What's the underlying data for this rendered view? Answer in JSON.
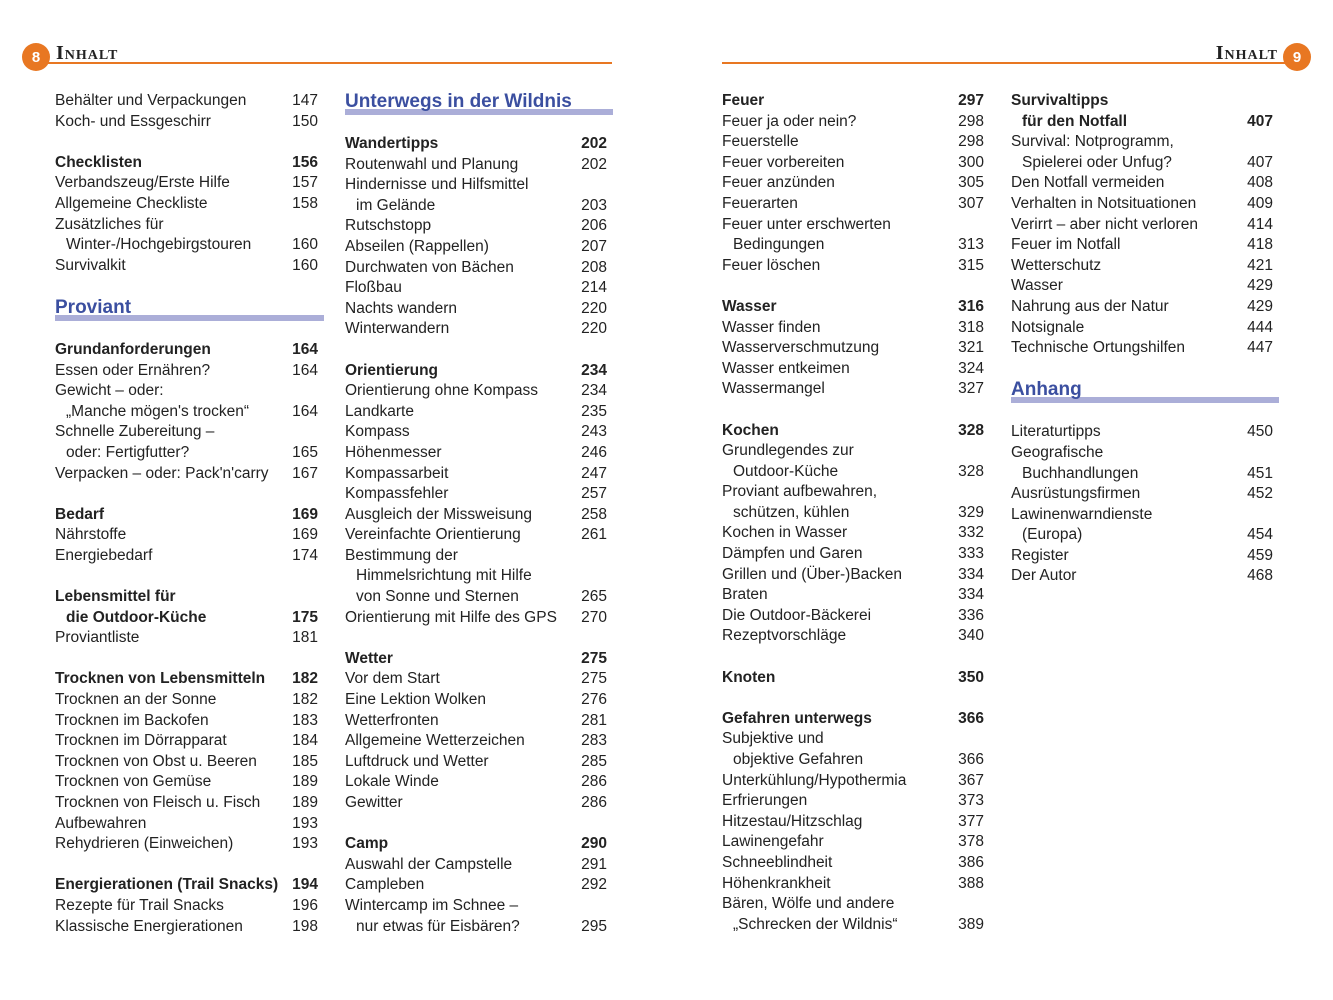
{
  "header": {
    "left_page": "8",
    "right_page": "9",
    "title": "Inhalt",
    "accent": "#e87722",
    "chapter_color": "#3b4fa0",
    "chapter_bar": "#abaed8"
  },
  "columns": [
    [
      [
        "Behälter und Verpackungen",
        "147",
        ""
      ],
      [
        "Koch- und Essgeschirr",
        "150",
        ""
      ],
      [
        "",
        "",
        ""
      ],
      [
        "Checklisten",
        "156",
        "b"
      ],
      [
        "Verbandszeug/Erste Hilfe",
        "157",
        ""
      ],
      [
        "Allgemeine Checkliste",
        "158",
        ""
      ],
      [
        "Zusätzliches für",
        "",
        ""
      ],
      [
        "Winter-/Hochgebirgstouren",
        "160",
        "i"
      ],
      [
        "Survivalkit",
        "160",
        ""
      ],
      [
        "",
        "",
        ""
      ],
      [
        "Proviant",
        "",
        "chap"
      ],
      [
        "Grundanforderungen",
        "164",
        "b"
      ],
      [
        "Essen oder Ernähren?",
        "164",
        ""
      ],
      [
        "Gewicht – oder:",
        "",
        ""
      ],
      [
        "„Manche mögen's trocken“",
        "164",
        "i"
      ],
      [
        "Schnelle Zubereitung –",
        "",
        ""
      ],
      [
        "oder: Fertigfutter?",
        "165",
        "i"
      ],
      [
        "Verpacken – oder: Pack'n'carry",
        "167",
        ""
      ],
      [
        "",
        "",
        ""
      ],
      [
        "Bedarf",
        "169",
        "b"
      ],
      [
        "Nährstoffe",
        "169",
        ""
      ],
      [
        "Energiebedarf",
        "174",
        ""
      ],
      [
        "",
        "",
        ""
      ],
      [
        "Lebensmittel für",
        "",
        "b"
      ],
      [
        "die Outdoor-Küche",
        "175",
        "b i"
      ],
      [
        "Proviantliste",
        "181",
        ""
      ],
      [
        "",
        "",
        ""
      ],
      [
        "Trocknen von Lebensmitteln",
        "182",
        "b"
      ],
      [
        "Trocknen an der Sonne",
        "182",
        ""
      ],
      [
        "Trocknen im Backofen",
        "183",
        ""
      ],
      [
        "Trocknen im Dörrapparat",
        "184",
        ""
      ],
      [
        "Trocknen von Obst u. Beeren",
        "185",
        ""
      ],
      [
        "Trocknen von Gemüse",
        "189",
        ""
      ],
      [
        "Trocknen von Fleisch u. Fisch",
        "189",
        ""
      ],
      [
        "Aufbewahren",
        "193",
        ""
      ],
      [
        "Rehydrieren (Einweichen)",
        "193",
        ""
      ],
      [
        "",
        "",
        ""
      ],
      [
        "Energierationen (Trail Snacks)",
        "194",
        "b"
      ],
      [
        "Rezepte für Trail Snacks",
        "196",
        ""
      ],
      [
        "Klassische Energierationen",
        "198",
        ""
      ]
    ],
    [
      [
        "Unterwegs in der Wildnis",
        "",
        "chap"
      ],
      [
        "Wandertipps",
        "202",
        "b"
      ],
      [
        "Routenwahl und Planung",
        "202",
        ""
      ],
      [
        "Hindernisse und Hilfsmittel",
        "",
        ""
      ],
      [
        "im Gelände",
        "203",
        "i"
      ],
      [
        "Rutschstopp",
        "206",
        ""
      ],
      [
        "Abseilen (Rappellen)",
        "207",
        ""
      ],
      [
        "Durchwaten von Bächen",
        "208",
        ""
      ],
      [
        "Floßbau",
        "214",
        ""
      ],
      [
        "Nachts wandern",
        "220",
        ""
      ],
      [
        "Winterwandern",
        "220",
        ""
      ],
      [
        "",
        "",
        ""
      ],
      [
        "Orientierung",
        "234",
        "b"
      ],
      [
        "Orientierung ohne Kompass",
        "234",
        ""
      ],
      [
        "Landkarte",
        "235",
        ""
      ],
      [
        "Kompass",
        "243",
        ""
      ],
      [
        "Höhenmesser",
        "246",
        ""
      ],
      [
        "Kompassarbeit",
        "247",
        ""
      ],
      [
        "Kompassfehler",
        "257",
        ""
      ],
      [
        "Ausgleich der Missweisung",
        "258",
        ""
      ],
      [
        "Vereinfachte Orientierung",
        "261",
        ""
      ],
      [
        "Bestimmung der",
        "",
        ""
      ],
      [
        "Himmelsrichtung mit Hilfe",
        "",
        "i"
      ],
      [
        "von Sonne und Sternen",
        "265",
        "i"
      ],
      [
        "Orientierung mit Hilfe des GPS",
        "270",
        ""
      ],
      [
        "",
        "",
        ""
      ],
      [
        "Wetter",
        "275",
        "b"
      ],
      [
        "Vor dem Start",
        "275",
        ""
      ],
      [
        "Eine Lektion Wolken",
        "276",
        ""
      ],
      [
        "Wetterfronten",
        "281",
        ""
      ],
      [
        "Allgemeine Wetterzeichen",
        "283",
        ""
      ],
      [
        "Luftdruck und Wetter",
        "285",
        ""
      ],
      [
        "Lokale Winde",
        "286",
        ""
      ],
      [
        "Gewitter",
        "286",
        ""
      ],
      [
        "",
        "",
        ""
      ],
      [
        "Camp",
        "290",
        "b"
      ],
      [
        "Auswahl der Campstelle",
        "291",
        ""
      ],
      [
        "Campleben",
        "292",
        ""
      ],
      [
        "Wintercamp im Schnee –",
        "",
        ""
      ],
      [
        "nur etwas für Eisbären?",
        "295",
        "i"
      ]
    ],
    [
      [
        "Feuer",
        "297",
        "b"
      ],
      [
        "Feuer ja oder nein?",
        "298",
        ""
      ],
      [
        "Feuerstelle",
        "298",
        ""
      ],
      [
        "Feuer vorbereiten",
        "300",
        ""
      ],
      [
        "Feuer anzünden",
        "305",
        ""
      ],
      [
        "Feuerarten",
        "307",
        ""
      ],
      [
        "Feuer unter erschwerten",
        "",
        ""
      ],
      [
        "Bedingungen",
        "313",
        "i"
      ],
      [
        "Feuer löschen",
        "315",
        ""
      ],
      [
        "",
        "",
        ""
      ],
      [
        "Wasser",
        "316",
        "b"
      ],
      [
        "Wasser finden",
        "318",
        ""
      ],
      [
        "Wasserverschmutzung",
        "321",
        ""
      ],
      [
        "Wasser entkeimen",
        "324",
        ""
      ],
      [
        "Wassermangel",
        "327",
        ""
      ],
      [
        "",
        "",
        ""
      ],
      [
        "Kochen",
        "328",
        "b"
      ],
      [
        "Grundlegendes zur",
        "",
        ""
      ],
      [
        "Outdoor-Küche",
        "328",
        "i"
      ],
      [
        "Proviant aufbewahren,",
        "",
        ""
      ],
      [
        "schützen, kühlen",
        "329",
        "i"
      ],
      [
        "Kochen in Wasser",
        "332",
        ""
      ],
      [
        "Dämpfen und Garen",
        "333",
        ""
      ],
      [
        "Grillen und (Über-)Backen",
        "334",
        ""
      ],
      [
        "Braten",
        "334",
        ""
      ],
      [
        "Die Outdoor-Bäckerei",
        "336",
        ""
      ],
      [
        "Rezeptvorschläge",
        "340",
        ""
      ],
      [
        "",
        "",
        ""
      ],
      [
        "Knoten",
        "350",
        "b"
      ],
      [
        "",
        "",
        ""
      ],
      [
        "Gefahren unterwegs",
        "366",
        "b"
      ],
      [
        "Subjektive und",
        "",
        ""
      ],
      [
        "objektive Gefahren",
        "366",
        "i"
      ],
      [
        "Unterkühlung/Hypothermia",
        "367",
        ""
      ],
      [
        "Erfrierungen",
        "373",
        ""
      ],
      [
        "Hitzestau/Hitzschlag",
        "377",
        ""
      ],
      [
        "Lawinengefahr",
        "378",
        ""
      ],
      [
        "Schneeblindheit",
        "386",
        ""
      ],
      [
        "Höhenkrankheit",
        "388",
        ""
      ],
      [
        "Bären, Wölfe und andere",
        "",
        ""
      ],
      [
        "„Schrecken der Wildnis“",
        "389",
        "i"
      ]
    ],
    [
      [
        "Survivaltipps",
        "",
        "b"
      ],
      [
        "für den Notfall",
        "407",
        "b i"
      ],
      [
        "Survival: Notprogramm,",
        "",
        ""
      ],
      [
        "Spielerei oder Unfug?",
        "407",
        "i"
      ],
      [
        "Den Notfall vermeiden",
        "408",
        ""
      ],
      [
        "Verhalten in Notsituationen",
        "409",
        ""
      ],
      [
        "Verirrt – aber nicht verloren",
        "414",
        ""
      ],
      [
        "Feuer im Notfall",
        "418",
        ""
      ],
      [
        "Wetterschutz",
        "421",
        ""
      ],
      [
        "Wasser",
        "429",
        ""
      ],
      [
        "Nahrung aus der Natur",
        "429",
        ""
      ],
      [
        "Notsignale",
        "444",
        ""
      ],
      [
        "Technische Ortungshilfen",
        "447",
        ""
      ],
      [
        "",
        "",
        ""
      ],
      [
        "Anhang",
        "",
        "chap"
      ],
      [
        "Literaturtipps",
        "450",
        ""
      ],
      [
        "Geografische",
        "",
        ""
      ],
      [
        "Buchhandlungen",
        "451",
        "i"
      ],
      [
        "Ausrüstungsfirmen",
        "452",
        ""
      ],
      [
        "Lawinenwarndienste",
        "",
        ""
      ],
      [
        "(Europa)",
        "454",
        "i"
      ],
      [
        "Register",
        "459",
        ""
      ],
      [
        "Der Autor",
        "468",
        ""
      ]
    ]
  ]
}
